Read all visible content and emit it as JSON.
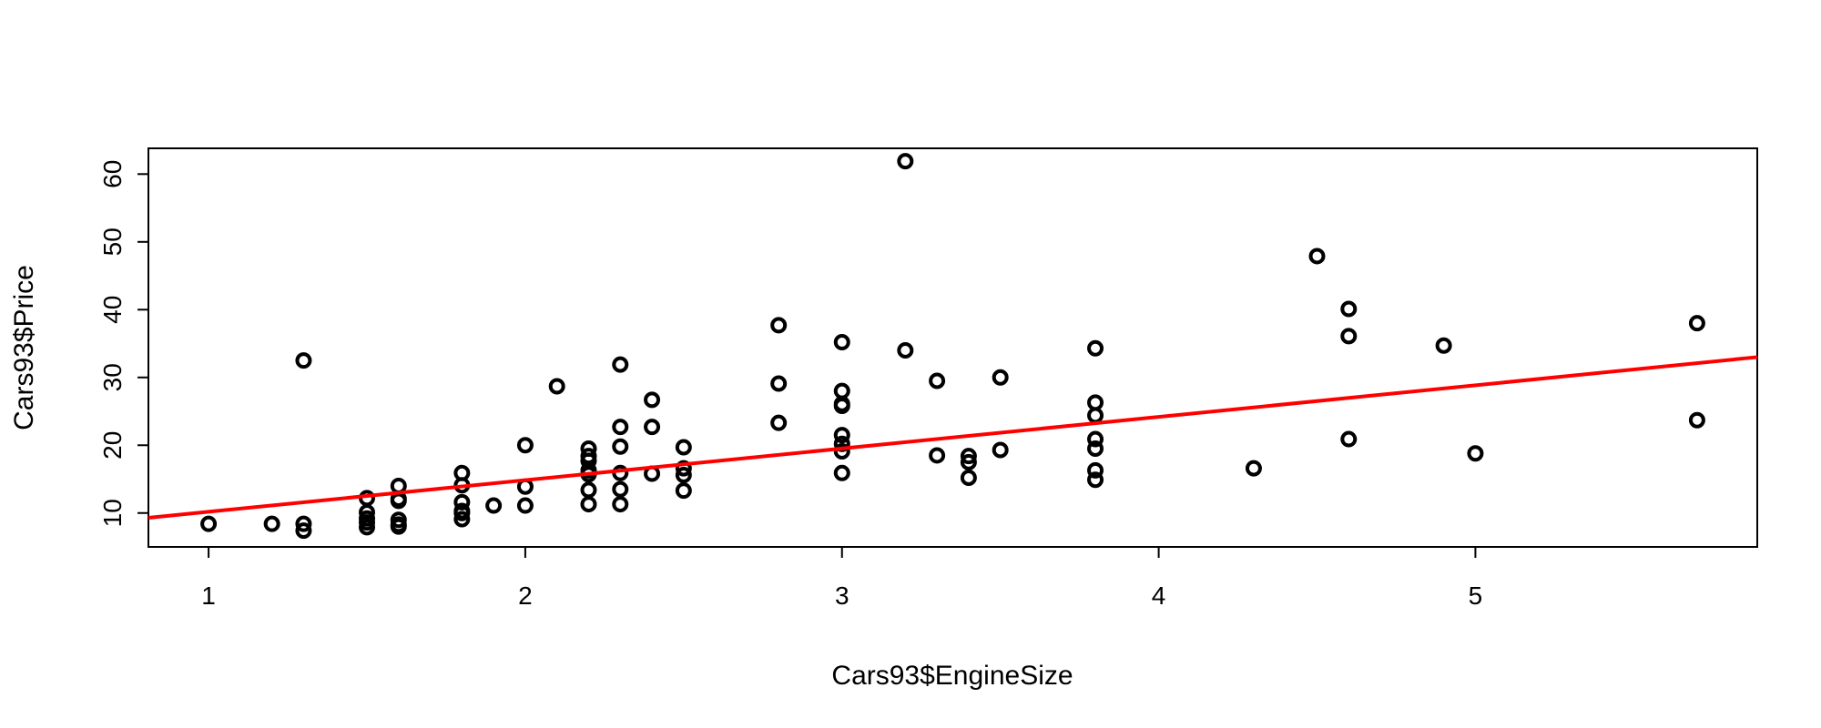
{
  "chart_data": {
    "type": "scatter",
    "title": "",
    "xlabel": "Cars93$EngineSize",
    "ylabel": "Cars93$Price",
    "xlim": [
      0.81,
      5.89
    ],
    "ylim": [
      5.0,
      63.8
    ],
    "xticks": [
      1,
      2,
      3,
      4,
      5
    ],
    "yticks": [
      10,
      20,
      30,
      40,
      50,
      60
    ],
    "grid": false,
    "legend": "none",
    "point_color": "#000000",
    "fit_line": {
      "color": "#ff0000",
      "x": [
        0.81,
        5.89
      ],
      "y": [
        9.3,
        33.0
      ]
    },
    "series": [
      {
        "x": [
          1.0,
          1.2,
          1.3,
          1.3,
          1.3,
          1.5,
          1.5,
          1.5,
          1.5,
          1.5,
          1.6,
          1.6,
          1.6,
          1.6,
          1.6,
          1.6,
          1.8,
          1.8,
          1.8,
          1.8,
          1.8,
          1.8,
          1.9,
          2.0,
          2.0,
          2.0,
          2.1,
          2.2,
          2.2,
          2.2,
          2.2,
          2.2,
          2.2,
          2.2,
          2.3,
          2.3,
          2.3,
          2.3,
          2.3,
          2.3,
          2.4,
          2.4,
          2.4,
          2.5,
          2.5,
          2.5,
          2.5,
          2.8,
          2.8,
          2.8,
          3.0,
          3.0,
          3.0,
          3.0,
          3.0,
          3.0,
          3.0,
          3.0,
          3.2,
          3.2,
          3.3,
          3.3,
          3.4,
          3.4,
          3.4,
          3.5,
          3.5,
          3.8,
          3.8,
          3.8,
          3.8,
          3.8,
          3.8,
          3.8,
          4.3,
          4.5,
          4.6,
          4.6,
          4.6,
          4.9,
          5.0,
          5.7,
          5.7
        ],
        "y": [
          8.4,
          8.4,
          32.5,
          8.4,
          7.4,
          12.2,
          10.1,
          9.2,
          8.6,
          7.9,
          14.0,
          11.8,
          12.1,
          9.0,
          8.3,
          8.0,
          15.9,
          14.1,
          11.6,
          10.3,
          10.0,
          9.1,
          11.1,
          20.0,
          13.9,
          11.1,
          28.7,
          19.5,
          18.4,
          17.7,
          16.3,
          15.7,
          13.4,
          11.3,
          31.9,
          22.7,
          19.8,
          15.9,
          13.5,
          11.3,
          26.7,
          22.7,
          15.8,
          19.7,
          16.6,
          15.6,
          13.3,
          37.7,
          29.1,
          23.3,
          35.2,
          28.0,
          26.1,
          25.8,
          21.5,
          20.2,
          19.1,
          15.9,
          61.9,
          34.0,
          29.5,
          18.5,
          18.4,
          17.5,
          15.2,
          30.0,
          19.3,
          34.3,
          26.3,
          24.4,
          20.9,
          19.5,
          16.3,
          14.9,
          16.6,
          47.9,
          40.1,
          36.1,
          20.9,
          34.7,
          18.8,
          38.0,
          23.7
        ]
      }
    ]
  }
}
